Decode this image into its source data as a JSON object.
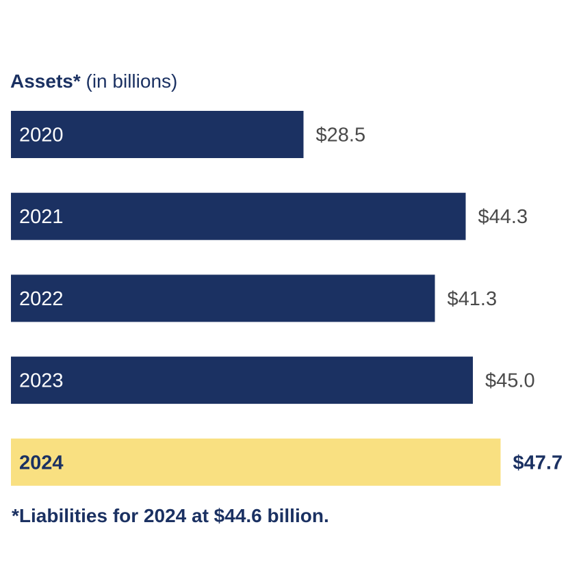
{
  "chart_data": {
    "type": "bar",
    "orientation": "horizontal",
    "title_bold": "Assets*",
    "title_rest": " (in billions)",
    "categories": [
      "2020",
      "2021",
      "2022",
      "2023",
      "2024"
    ],
    "values": [
      28.5,
      44.3,
      41.3,
      45.0,
      47.7
    ],
    "value_labels": [
      "$28.5",
      "$44.3",
      "$41.3",
      "$45.0",
      "$47.7"
    ],
    "highlight_index": 4,
    "xlim": [
      0,
      52
    ],
    "colors": {
      "bar": "#1b3162",
      "highlight_bar": "#f9e081",
      "bar_text": "#ffffff",
      "highlight_text": "#1b3162",
      "value_text": "#4a4a4a",
      "highlight_value_text": "#1b3162"
    },
    "footnote": "*Liabilities for 2024 at $44.6 billion."
  }
}
